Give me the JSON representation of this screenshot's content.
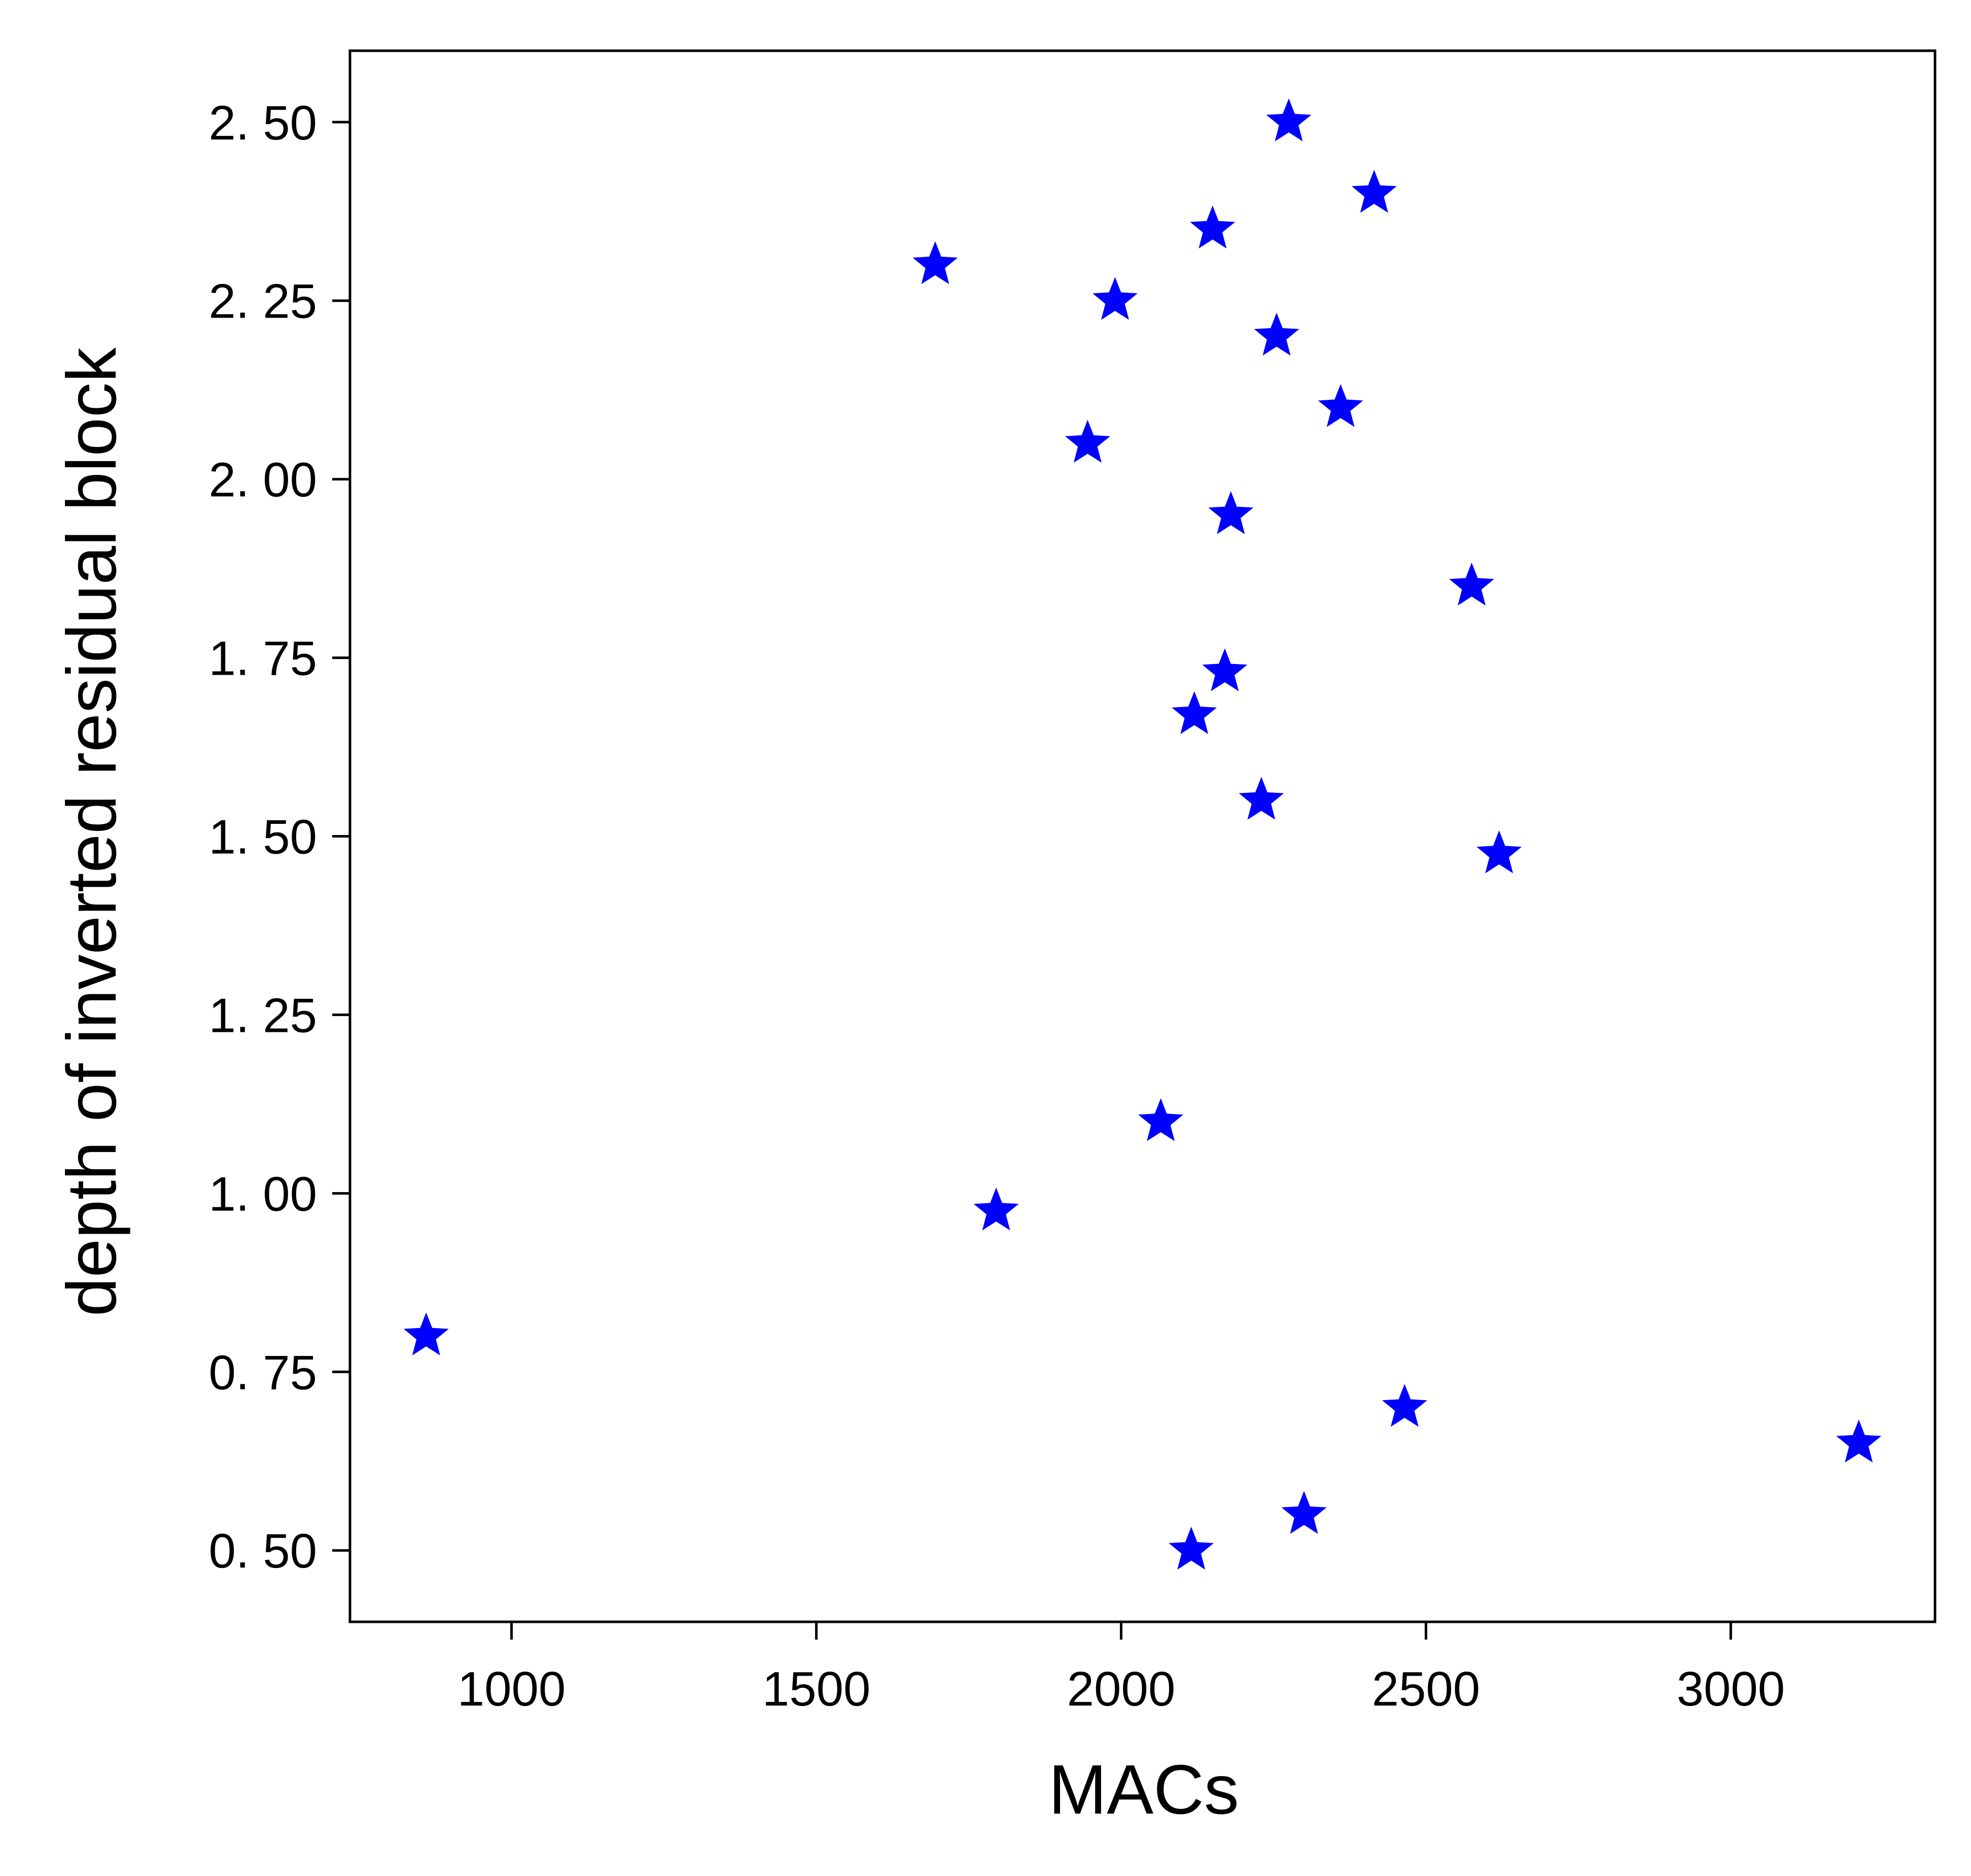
{
  "chart_data": {
    "type": "scatter",
    "title": "",
    "xlabel": "MACs",
    "ylabel": "depth of inverted residual block",
    "xlim": [
      735,
      3335
    ],
    "ylim": [
      0.4,
      2.6
    ],
    "xticks": [
      1000,
      1500,
      2000,
      2500,
      3000
    ],
    "xtick_labels": [
      "1000",
      "1500",
      "2000",
      "2500",
      "3000"
    ],
    "yticks": [
      0.5,
      0.75,
      1.0,
      1.25,
      1.5,
      1.75,
      2.0,
      2.25,
      2.5
    ],
    "ytick_labels": [
      "0. 50",
      "0. 75",
      "1. 00",
      "1. 25",
      "1. 50",
      "1. 75",
      "2. 00",
      "2. 25",
      "2. 50"
    ],
    "grid": false,
    "marker": "star",
    "color": "#0000ff",
    "points": [
      {
        "x": 2275,
        "y": 2.5
      },
      {
        "x": 2415,
        "y": 2.4
      },
      {
        "x": 2150,
        "y": 2.35
      },
      {
        "x": 1695,
        "y": 2.3
      },
      {
        "x": 1990,
        "y": 2.25
      },
      {
        "x": 2255,
        "y": 2.2
      },
      {
        "x": 2360,
        "y": 2.1
      },
      {
        "x": 1945,
        "y": 2.05
      },
      {
        "x": 2180,
        "y": 1.95
      },
      {
        "x": 2575,
        "y": 1.85
      },
      {
        "x": 2170,
        "y": 1.73
      },
      {
        "x": 2120,
        "y": 1.67
      },
      {
        "x": 2230,
        "y": 1.55
      },
      {
        "x": 2620,
        "y": 1.475
      },
      {
        "x": 2065,
        "y": 1.1
      },
      {
        "x": 1795,
        "y": 0.975
      },
      {
        "x": 860,
        "y": 0.8
      },
      {
        "x": 2465,
        "y": 0.7
      },
      {
        "x": 3210,
        "y": 0.65
      },
      {
        "x": 2300,
        "y": 0.55
      },
      {
        "x": 2115,
        "y": 0.5
      }
    ]
  }
}
